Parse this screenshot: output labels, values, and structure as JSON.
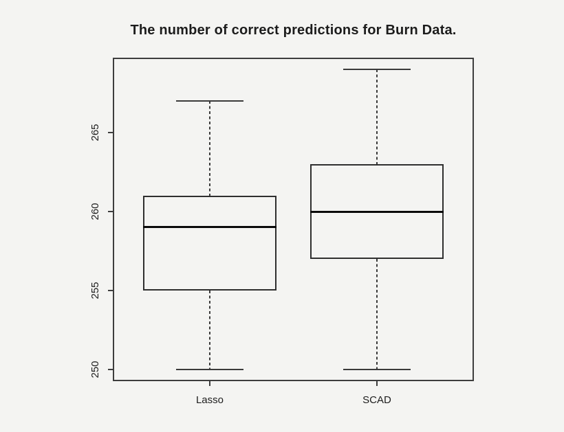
{
  "chart_data": {
    "type": "boxplot",
    "title": "The number of correct predictions for Burn Data.",
    "categories": [
      "Lasso",
      "SCAD"
    ],
    "series": [
      {
        "name": "Lasso",
        "whisker_low": 250,
        "q1": 255,
        "median": 259,
        "q3": 261,
        "whisker_high": 267,
        "outliers": []
      },
      {
        "name": "SCAD",
        "whisker_low": 250,
        "q1": 257,
        "median": 260,
        "q3": 263,
        "whisker_high": 269,
        "outliers": []
      }
    ],
    "x_positions": [
      1,
      2
    ],
    "xlim": [
      0.42,
      2.58
    ],
    "ylim": [
      249.24,
      269.76
    ],
    "yticks": [
      250,
      255,
      260,
      265
    ],
    "box_width": 0.8,
    "cap_width": 0.4,
    "grid": false,
    "legend": "none",
    "xlabel": "",
    "ylabel": "",
    "whisker_style": "dashed",
    "colors": {
      "background": "#f4f4f2",
      "frame": "#3d3d3d",
      "box_line": "#2e2e2e",
      "median_line": "#0a0a0a",
      "whisker_line": "#3a3a3a",
      "text": "#1c1c1c"
    }
  }
}
